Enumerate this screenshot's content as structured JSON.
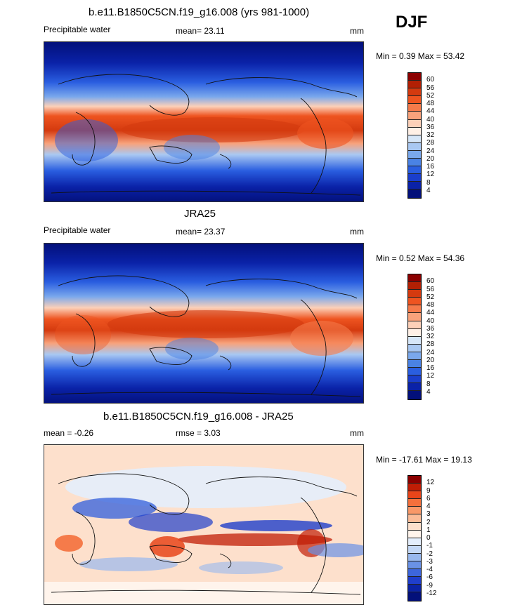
{
  "season": "DJF",
  "panels": [
    {
      "title": "b.e11.B1850C5CN.f19_g16.008 (yrs 981-1000)",
      "left_label": "Precipitable water",
      "center_label": "mean=  23.11",
      "unit": "mm",
      "minmax": "Min =   0.39 Max =  53.42",
      "colorbar": {
        "labels": [
          "60",
          "56",
          "52",
          "48",
          "44",
          "40",
          "36",
          "32",
          "28",
          "24",
          "20",
          "16",
          "12",
          "8",
          "4"
        ],
        "colors": [
          "#8b0000",
          "#b22004",
          "#d43a0f",
          "#ee5420",
          "#f57a4a",
          "#f8a27b",
          "#fcd0b8",
          "#fff0e6",
          "#d6e6f8",
          "#a9c8f2",
          "#7aa8ec",
          "#4a82e4",
          "#2a5ee0",
          "#1a3ecc",
          "#0a22a8",
          "#03107a"
        ]
      }
    },
    {
      "title": "JRA25",
      "left_label": "Precipitable water",
      "center_label": "mean=  23.37",
      "unit": "mm",
      "minmax": "Min =   0.52 Max =  54.36",
      "colorbar": {
        "labels": [
          "60",
          "56",
          "52",
          "48",
          "44",
          "40",
          "36",
          "32",
          "28",
          "24",
          "20",
          "16",
          "12",
          "8",
          "4"
        ],
        "colors": [
          "#8b0000",
          "#b22004",
          "#d43a0f",
          "#ee5420",
          "#f57a4a",
          "#f8a27b",
          "#fcd0b8",
          "#fff0e6",
          "#d6e6f8",
          "#a9c8f2",
          "#7aa8ec",
          "#4a82e4",
          "#2a5ee0",
          "#1a3ecc",
          "#0a22a8",
          "#03107a"
        ]
      }
    },
    {
      "title": "b.e11.B1850C5CN.f19_g16.008 - JRA25",
      "left_label": "mean =  -0.26",
      "center_label": "rmse =   3.03",
      "unit": "mm",
      "minmax": "Min = -17.61 Max =  19.13",
      "colorbar": {
        "labels": [
          "12",
          "9",
          "6",
          "4",
          "3",
          "2",
          "1",
          "0",
          "-1",
          "-2",
          "-3",
          "-4",
          "-6",
          "-9",
          "-12"
        ],
        "colors": [
          "#8b0000",
          "#c01d05",
          "#e8451a",
          "#f4703c",
          "#f99868",
          "#fbbc98",
          "#fde0cc",
          "#fff4ec",
          "#e4eefc",
          "#c4d8f6",
          "#98b8ee",
          "#6a92e6",
          "#3d66dc",
          "#1f3ecb",
          "#0b22a4",
          "#03107a"
        ]
      }
    }
  ]
}
